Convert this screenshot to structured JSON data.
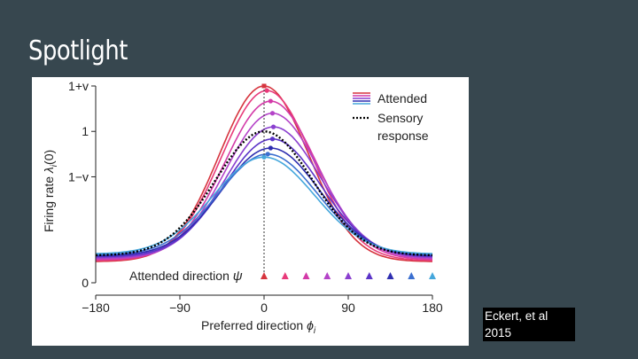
{
  "slide": {
    "title": "Spotlight",
    "citation_line1": "Eckert, et al",
    "citation_line2": "2015"
  },
  "chart_data": {
    "type": "line",
    "xlabel": "Preferred direction ",
    "xlabel_var": "ϕ",
    "xlabel_sub": "i",
    "ylabel": "Firing rate ",
    "ylabel_var": "λ",
    "ylabel_sub": "i",
    "ylabel_suffix": "(0)",
    "xlim": [
      -180,
      180
    ],
    "xticks": [
      -180,
      -90,
      0,
      90,
      180
    ],
    "xtick_labels": [
      "−180",
      "−90",
      "0",
      "90",
      "180"
    ],
    "ytick_labels": [
      "1+v",
      "1",
      "1−v",
      "0"
    ],
    "ytick_values": [
      1.3,
      1.0,
      0.7,
      0.0
    ],
    "ylim": [
      0,
      1.3
    ],
    "attended_direction_label": "Attended direction ",
    "attended_direction_var": "ψ",
    "legend": {
      "position": "top-right",
      "attended_label": "Attended",
      "sensory_label_line1": "Sensory",
      "sensory_label_line2": "response"
    },
    "sensory_response": {
      "name": "Sensory response",
      "style": "dotted",
      "color": "#000000",
      "peak": 1.0,
      "peak_x": 0,
      "baseline": 0.18
    },
    "attended_series": [
      {
        "psi": 0,
        "peak": 1.3,
        "peak_x": 0,
        "color": "#d6343e"
      },
      {
        "psi": 22.5,
        "peak": 1.27,
        "peak_x": 3,
        "color": "#e83a7a"
      },
      {
        "psi": 45,
        "peak": 1.2,
        "peak_x": 7,
        "color": "#d33aa8"
      },
      {
        "psi": 67.5,
        "peak": 1.12,
        "peak_x": 9,
        "color": "#b443c8"
      },
      {
        "psi": 90,
        "peak": 1.03,
        "peak_x": 10,
        "color": "#8a3fcf"
      },
      {
        "psi": 112.5,
        "peak": 0.95,
        "peak_x": 9,
        "color": "#5b34c8"
      },
      {
        "psi": 135,
        "peak": 0.89,
        "peak_x": 7,
        "color": "#2f2eb0"
      },
      {
        "psi": 157.5,
        "peak": 0.85,
        "peak_x": 4,
        "color": "#3b6fd0"
      },
      {
        "psi": 180,
        "peak": 0.83,
        "peak_x": 0,
        "color": "#45a7dc"
      }
    ],
    "attended_markers_x": [
      0,
      22.5,
      45,
      67.5,
      90,
      112.5,
      135,
      157.5,
      180
    ]
  }
}
